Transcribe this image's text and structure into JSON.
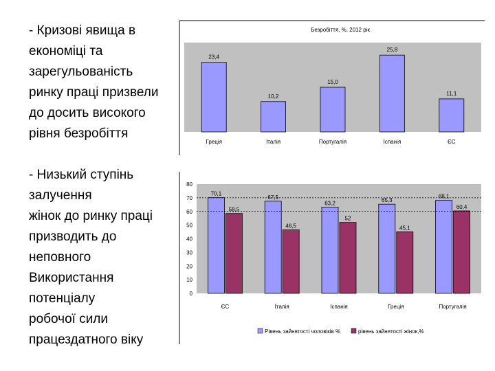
{
  "text": {
    "block1": [
      "-   Кризові явища в",
      "економіці та",
      "зарегульованість",
      "ринку праці призвели",
      "до досить високого",
      "рівня безробіття"
    ],
    "block2": [
      "- Низький ступінь",
      "залучення",
      "жінок до ринку праці",
      "призводить до",
      "неповного",
      "Використання",
      "потенціалу",
      "робочої сили",
      "працездатного віку"
    ]
  },
  "chart_data": [
    {
      "type": "bar",
      "title": "Безробіття, %, 2012 рік",
      "categories": [
        "Греція",
        "Італія",
        "Португалія",
        "Іспанія",
        "ЄС"
      ],
      "values": [
        23.4,
        10.2,
        15.0,
        25.8,
        11.1
      ],
      "value_labels": [
        "23,4",
        "10,2",
        "15,0",
        "25,8",
        "11,1"
      ],
      "ylim": [
        0,
        30
      ],
      "colors": {
        "bar": "#9999ff",
        "background": "#c0c0c0"
      },
      "grid": false,
      "legend": "none"
    },
    {
      "type": "bar",
      "categories": [
        "ЄС",
        "Італія",
        "Іспанія",
        "Греція",
        "Португалія"
      ],
      "yticks": [
        "0",
        "10",
        "20",
        "30",
        "40",
        "50",
        "60",
        "70",
        "80"
      ],
      "ylim": [
        0,
        80
      ],
      "series": [
        {
          "name": "Рівень зайнятості чоловіків %",
          "values": [
            70.1,
            67.5,
            63.2,
            65.3,
            68.1
          ],
          "labels": [
            "70,1",
            "67,5",
            "63,2",
            "65,3",
            "68,1"
          ],
          "color": "#9999ff"
        },
        {
          "name": "рівень зайнятості жінок,%",
          "values": [
            58.5,
            46.5,
            52,
            45.1,
            60.4
          ],
          "labels": [
            "58,5",
            "46,5",
            "52",
            "45,1",
            "60,4"
          ],
          "color": "#993366"
        }
      ],
      "reference_lines": [
        70,
        60
      ],
      "colors": {
        "background": "#c0c0c0"
      },
      "legend": "bottom"
    }
  ]
}
